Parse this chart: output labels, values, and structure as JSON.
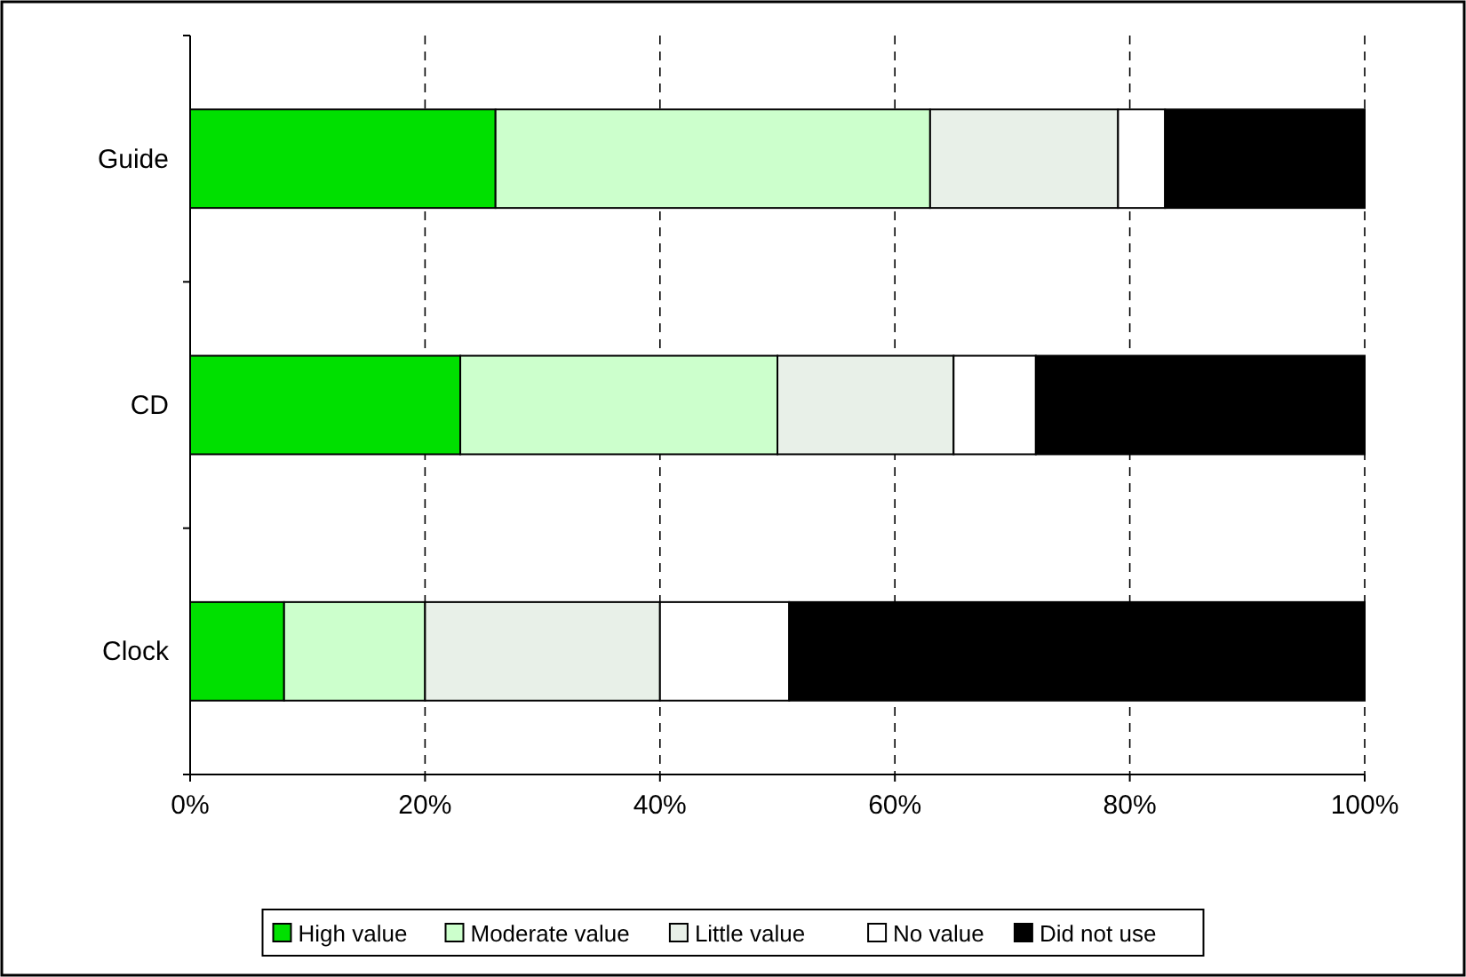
{
  "chart_data": {
    "type": "bar",
    "orientation": "horizontal",
    "stacked": true,
    "categories": [
      "Guide",
      "CD",
      "Clock"
    ],
    "series": [
      {
        "name": "High value",
        "color": "#00e000",
        "values": [
          26,
          23,
          8
        ]
      },
      {
        "name": "Moderate value",
        "color": "#ccffcc",
        "values": [
          37,
          27,
          12
        ]
      },
      {
        "name": "Little value",
        "color": "#e8f0e8",
        "values": [
          16,
          15,
          20
        ]
      },
      {
        "name": "No value",
        "color": "#ffffff",
        "values": [
          4,
          7,
          11
        ]
      },
      {
        "name": "Did not use",
        "color": "#000000",
        "values": [
          17,
          28,
          49
        ]
      }
    ],
    "xlim": [
      0,
      100
    ],
    "xticks": [
      {
        "value": 0,
        "label": "0%"
      },
      {
        "value": 20,
        "label": "20%"
      },
      {
        "value": 40,
        "label": "40%"
      },
      {
        "value": 60,
        "label": "60%"
      },
      {
        "value": 80,
        "label": "80%"
      },
      {
        "value": 100,
        "label": "100%"
      }
    ],
    "grid": "x",
    "legend": "bottom"
  }
}
